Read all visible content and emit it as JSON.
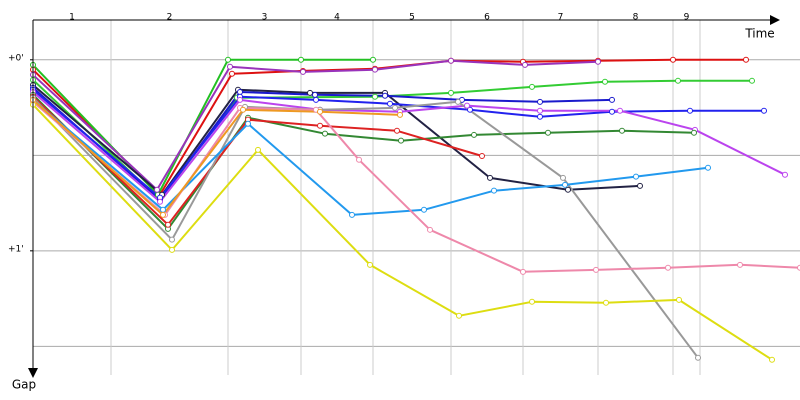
{
  "chart_data": {
    "type": "line",
    "x_label": "Time",
    "y_label": "Gap",
    "laps": [
      "1",
      "2",
      "3",
      "4",
      "5",
      "6",
      "7",
      "8",
      "9"
    ],
    "lap_ends": [
      78,
      195,
      268,
      340,
      418,
      490,
      565,
      640,
      667
    ],
    "xlim": [
      0,
      767
    ],
    "ylim": [
      -12.5,
      99
    ],
    "yticks": [
      {
        "value": 0,
        "label": "+0'"
      },
      {
        "value": 60,
        "label": "+1'"
      }
    ],
    "ygrid": [
      0,
      30,
      60,
      90
    ],
    "series": [
      {
        "color": "#dd1111",
        "x": [
          0,
          127,
          199,
          270,
          342,
          418,
          490,
          565,
          640,
          713
        ],
        "values": [
          3.1,
          42.4,
          4.4,
          3.5,
          2.8,
          0.3,
          0.6,
          0.3,
          0,
          0
        ]
      },
      {
        "color": "#22c022",
        "x": [
          0,
          125,
          195,
          268,
          340
        ],
        "values": [
          1.6,
          42.4,
          0,
          0,
          0
        ]
      },
      {
        "color": "#9933bb",
        "x": [
          0,
          124,
          197,
          270,
          342,
          418,
          492,
          565
        ],
        "values": [
          4.7,
          40.8,
          2.2,
          3.8,
          3.1,
          0.3,
          1.6,
          0.6
        ]
      },
      {
        "color": "#33cc33",
        "x": [
          0,
          127,
          204,
          342,
          418,
          499,
          572,
          645,
          719
        ],
        "values": [
          6.3,
          44,
          11.9,
          11.6,
          10.4,
          8.5,
          6.9,
          6.6,
          6.6
        ]
      },
      {
        "color": "#222244",
        "x": [
          0,
          129,
          205,
          277,
          352,
          457,
          535,
          607
        ],
        "values": [
          7.9,
          42.4,
          9.4,
          10.4,
          10.4,
          37.1,
          40.8,
          39.6
        ]
      },
      {
        "color": "#1a1acc",
        "x": [
          0,
          127,
          207,
          282,
          352,
          429,
          507,
          579
        ],
        "values": [
          8.8,
          44,
          10.1,
          11,
          11.3,
          12.6,
          13.2,
          12.6
        ]
      },
      {
        "color": "#2222ee",
        "x": [
          0,
          127,
          207,
          283,
          357,
          437,
          507,
          579,
          657,
          731
        ],
        "values": [
          9.4,
          43.3,
          11.6,
          12.6,
          13.8,
          15.7,
          17.9,
          16.3,
          16,
          16
        ]
      },
      {
        "color": "#bb44ee",
        "x": [
          0,
          127,
          207,
          287,
          367,
          434,
          507,
          587,
          662,
          752
        ],
        "values": [
          10.1,
          44.6,
          12.6,
          15.7,
          16.3,
          14.4,
          16,
          16,
          22,
          36.1
        ]
      },
      {
        "color": "#338833",
        "x": [
          0,
          135,
          215,
          292,
          368,
          441,
          515,
          589,
          661
        ],
        "values": [
          11,
          53.1,
          18.2,
          23.2,
          25.4,
          23.6,
          22.9,
          22.3,
          22.9
        ]
      },
      {
        "color": "#dd2222",
        "x": [
          0,
          135,
          215,
          287,
          364,
          449
        ],
        "values": [
          11.6,
          51.8,
          18.8,
          20.7,
          22.3,
          30.2
        ]
      },
      {
        "color": "#999999",
        "x": [
          0,
          139,
          212,
          287,
          362,
          425,
          530,
          665
        ],
        "values": [
          11.9,
          56.5,
          14.8,
          15.7,
          15.1,
          13.2,
          37.1,
          93.6
        ]
      },
      {
        "color": "#2299ee",
        "x": [
          0,
          130,
          215,
          319,
          391,
          461,
          532,
          603,
          675
        ],
        "values": [
          12.6,
          47.1,
          20.1,
          48.7,
          47.1,
          41.1,
          39.3,
          36.7,
          33.9
        ]
      },
      {
        "color": "#ee88aa",
        "x": [
          0,
          132,
          207,
          283,
          326,
          397,
          490,
          563,
          635,
          707,
          767
        ],
        "values": [
          13.2,
          48.7,
          15.1,
          15.7,
          31.4,
          53.4,
          66.6,
          66,
          65.3,
          64.4,
          65.3
        ]
      },
      {
        "color": "#dddd11",
        "x": [
          0,
          139,
          225,
          337,
          426,
          499,
          573,
          646,
          739
        ],
        "values": [
          14.1,
          59.7,
          28.3,
          64.4,
          80.4,
          76,
          76.3,
          75.4,
          94.2
        ]
      },
      {
        "color": "#ee9922",
        "x": [
          0,
          130,
          210,
          287,
          367
        ],
        "values": [
          12.6,
          48.7,
          15.7,
          16.3,
          17.3
        ]
      }
    ]
  }
}
